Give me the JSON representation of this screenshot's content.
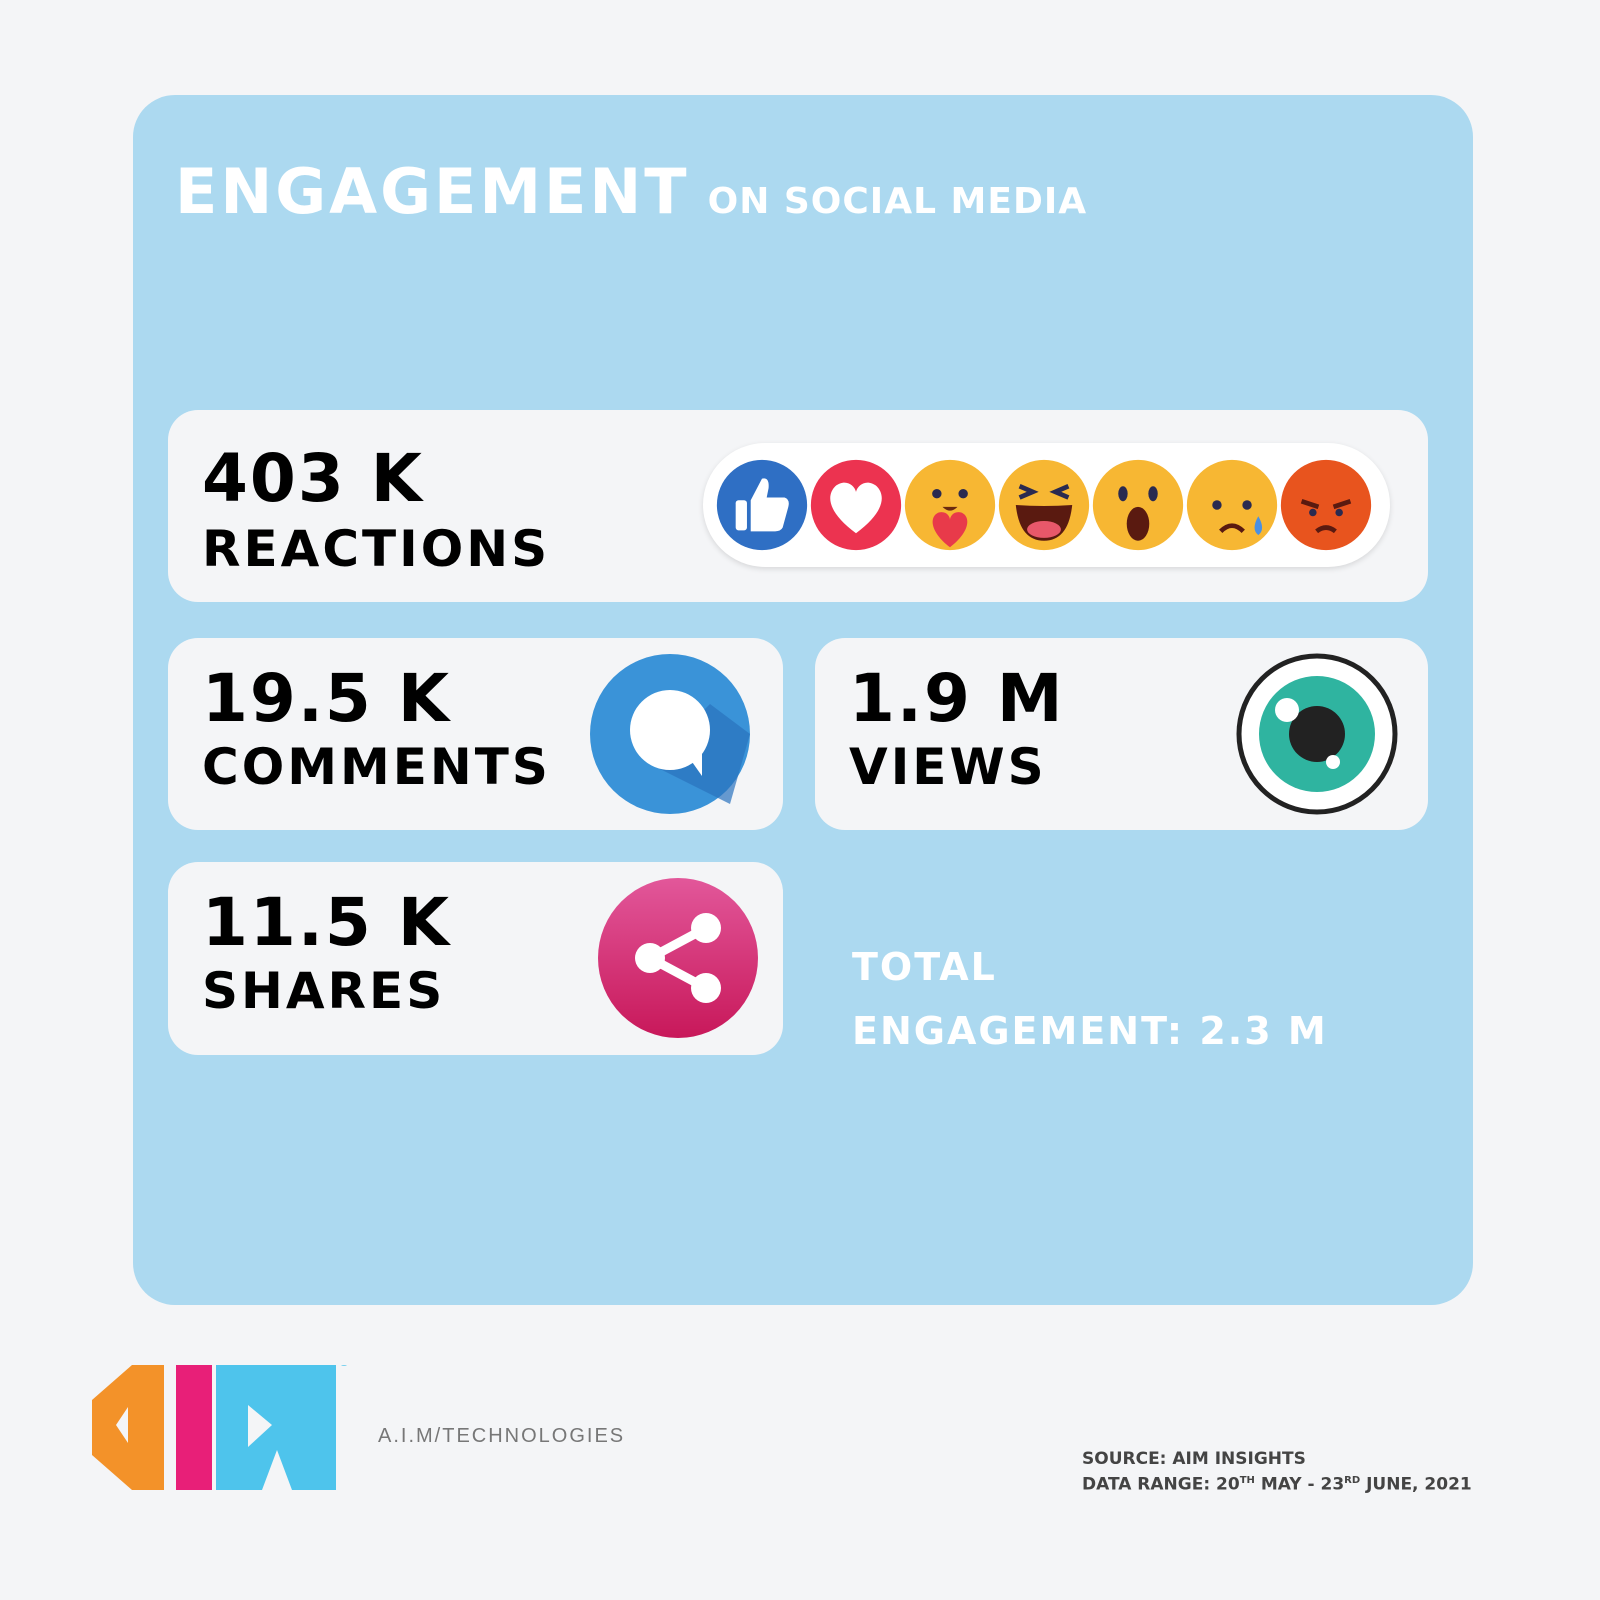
{
  "title": {
    "main": "ENGAGEMENT",
    "sub": "ON SOCIAL MEDIA"
  },
  "colors": {
    "panel": "#acd9f0",
    "card": "#f4f5f7",
    "background": "#f4f5f7"
  },
  "metrics": {
    "reactions": {
      "value": "403 K",
      "label": "REACTIONS",
      "icons": [
        "like-icon",
        "love-icon",
        "care-icon",
        "haha-icon",
        "wow-icon",
        "sad-icon",
        "angry-icon"
      ]
    },
    "comments": {
      "value": "19.5 K",
      "label": "COMMENTS",
      "icon": "comment-bubble-icon"
    },
    "views": {
      "value": "1.9 M",
      "label": "VIEWS",
      "icon": "eye-icon"
    },
    "shares": {
      "value": "11.5 K",
      "label": "SHARES",
      "icon": "share-icon"
    }
  },
  "total": {
    "line1": "TOTAL",
    "line2": "ENGAGEMENT: 2.3 M"
  },
  "footer": {
    "company": "A.I.M/TECHNOLOGIES",
    "source": "SOURCE: AIM INSIGHTS",
    "range_prefix": "DATA RANGE: 20",
    "range_sup1": "TH",
    "range_mid": " MAY - 23",
    "range_sup2": "RD",
    "range_suffix": " JUNE, 2021",
    "logo_text": "AIM"
  }
}
